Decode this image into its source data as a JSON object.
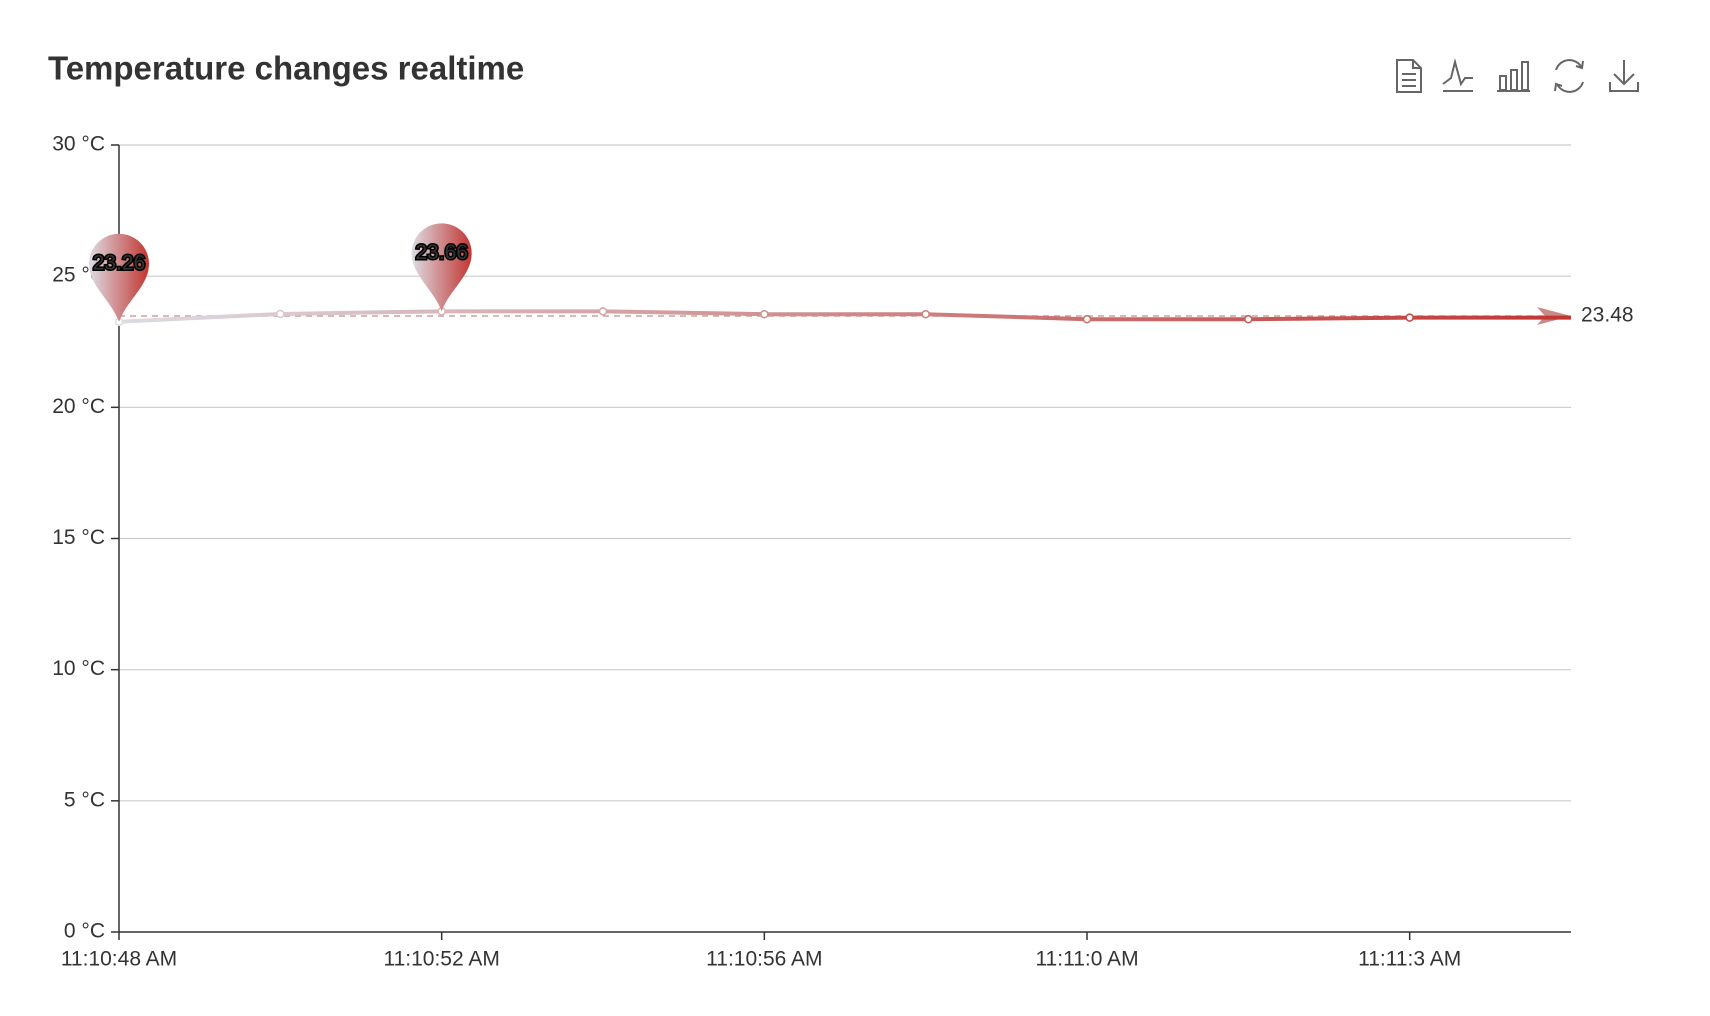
{
  "chart_data": {
    "type": "line",
    "title": "Temperature changes realtime",
    "categories": [
      "11:10:48 AM",
      null,
      "11:10:52 AM",
      null,
      "11:10:56 AM",
      null,
      "11:11:0 AM",
      null,
      "11:11:3 AM",
      null
    ],
    "series": [
      {
        "values": [
          23.26,
          23.56,
          23.66,
          23.66,
          23.55,
          23.55,
          23.36,
          23.36,
          23.42,
          23.42
        ]
      }
    ],
    "colors": [
      "#dcdce3",
      "#c23531"
    ],
    "ylim": [
      0,
      30
    ],
    "yticks": [
      {
        "value": 0,
        "label": "0 °C"
      },
      {
        "value": 5,
        "label": "5 °C"
      },
      {
        "value": 10,
        "label": "10 °C"
      },
      {
        "value": 15,
        "label": "15 °C"
      },
      {
        "value": 20,
        "label": "20 °C"
      },
      {
        "value": 25,
        "label": "25 °C"
      },
      {
        "value": 30,
        "label": "30 °C"
      }
    ],
    "grid": true,
    "max": 23.66,
    "min": 23.26,
    "average": 23.48
  }
}
